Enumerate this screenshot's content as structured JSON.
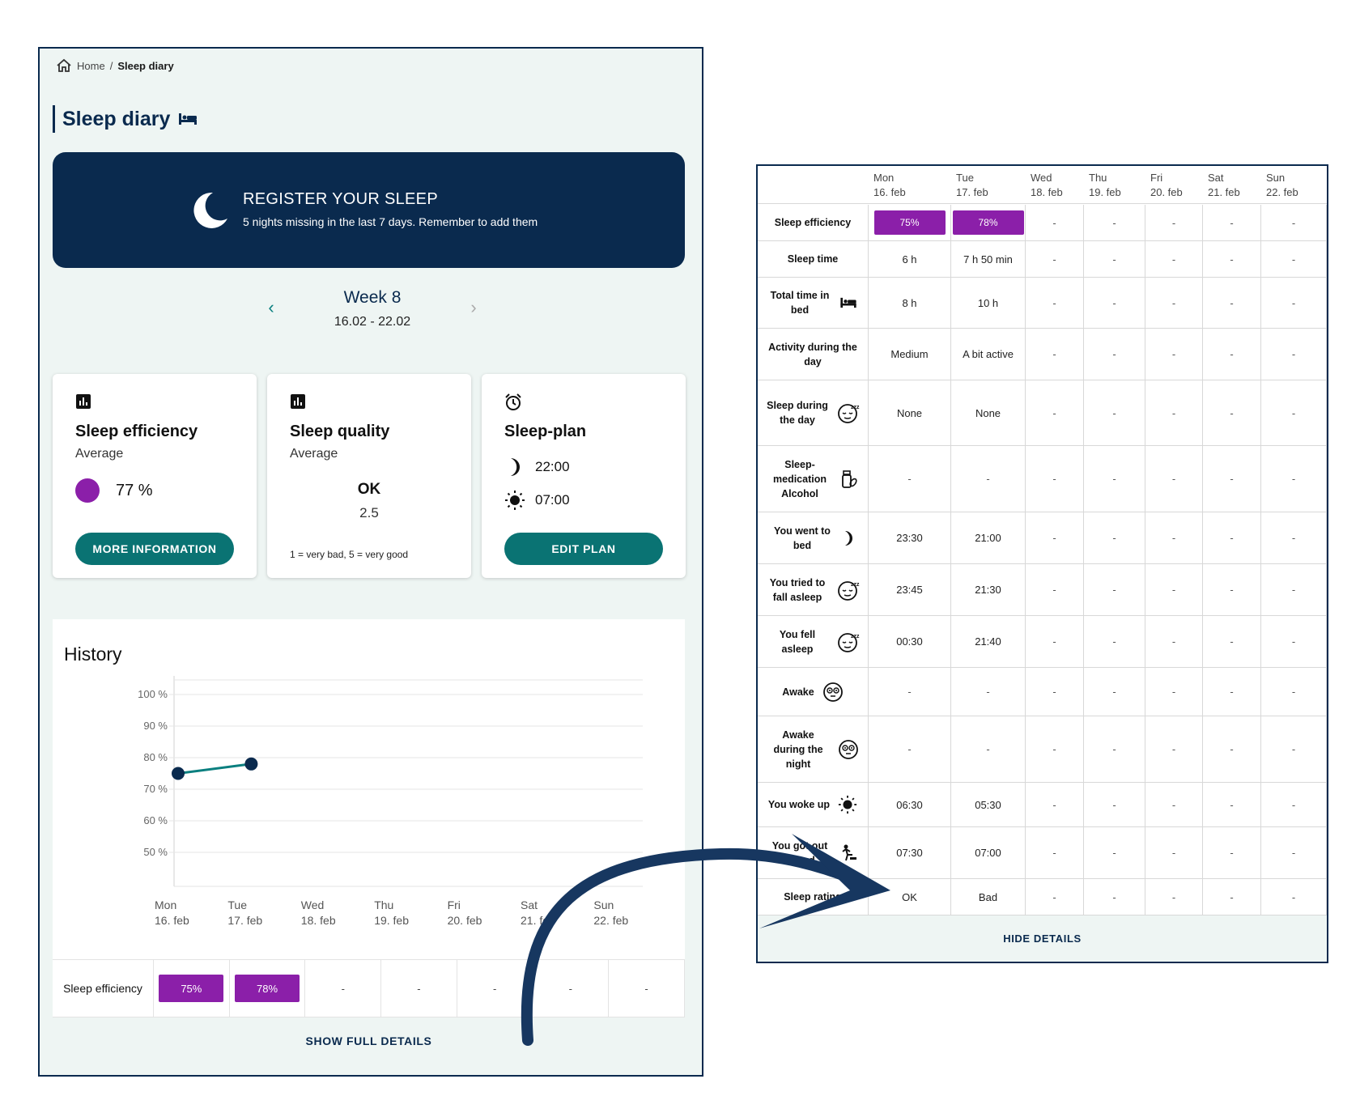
{
  "breadcrumb": {
    "home": "Home",
    "separator": "/",
    "current": "Sleep diary"
  },
  "page_title": "Sleep diary",
  "banner": {
    "title": "REGISTER YOUR SLEEP",
    "subtitle": "5 nights missing in the last 7 days. Remember to add them"
  },
  "week": {
    "label": "Week 8",
    "range": "16.02 - 22.02"
  },
  "cards": {
    "efficiency": {
      "title": "Sleep efficiency",
      "subtitle": "Average",
      "value": "77 %",
      "button": "MORE INFORMATION",
      "dot_color": "#8b1fa9"
    },
    "quality": {
      "title": "Sleep quality",
      "subtitle": "Average",
      "value": "OK",
      "score": "2.5",
      "scale": "1 = very bad, 5 = very good"
    },
    "plan": {
      "title": "Sleep-plan",
      "bedtime": "22:00",
      "wake": "07:00",
      "button": "EDIT PLAN"
    }
  },
  "history": {
    "title": "History",
    "row_label": "Sleep efficiency",
    "row_values": [
      "75%",
      "78%",
      "-",
      "-",
      "-",
      "-",
      "-"
    ],
    "button": "SHOW FULL DETAILS"
  },
  "days": [
    {
      "name": "Mon",
      "date": "16. feb"
    },
    {
      "name": "Tue",
      "date": "17. feb"
    },
    {
      "name": "Wed",
      "date": "18. feb"
    },
    {
      "name": "Thu",
      "date": "19. feb"
    },
    {
      "name": "Fri",
      "date": "20. feb"
    },
    {
      "name": "Sat",
      "date": "21. feb"
    },
    {
      "name": "Sun",
      "date": "22. feb"
    }
  ],
  "chart_data": {
    "type": "line",
    "categories": [
      "Mon 16. feb",
      "Tue 17. feb",
      "Wed 18. feb",
      "Thu 19. feb",
      "Fri 20. feb",
      "Sat 21. feb",
      "Sun 22. feb"
    ],
    "y_ticks": [
      "100 %",
      "90 %",
      "80 %",
      "70 %",
      "60 %",
      "50 %"
    ],
    "ylim": [
      50,
      100
    ],
    "series": [
      {
        "values": [
          75,
          78,
          null,
          null,
          null,
          null,
          null
        ]
      }
    ],
    "grid": true,
    "colors": {
      "line": "#0a7f7f",
      "point": "#0a2a4e"
    }
  },
  "details": {
    "rows": [
      {
        "label": "Sleep efficiency",
        "icon": "",
        "values": [
          "75%",
          "78%",
          "-",
          "-",
          "-",
          "-",
          "-"
        ],
        "badges": true
      },
      {
        "label": "Sleep time",
        "icon": "",
        "values": [
          "6 h",
          "7 h 50 min",
          "-",
          "-",
          "-",
          "-",
          "-"
        ]
      },
      {
        "label": "Total time in bed",
        "icon": "bed-icon",
        "values": [
          "8 h",
          "10 h",
          "-",
          "-",
          "-",
          "-",
          "-"
        ]
      },
      {
        "label": "Activity during the day",
        "icon": "",
        "values": [
          "Medium",
          "A bit active",
          "-",
          "-",
          "-",
          "-",
          "-"
        ]
      },
      {
        "label": "Sleep during the day",
        "icon": "sleepy-face-icon",
        "values": [
          "None",
          "None",
          "-",
          "-",
          "-",
          "-",
          "-"
        ]
      },
      {
        "label": "Sleep-medication Alcohol",
        "icon": "medication-icon",
        "values": [
          "-",
          "-",
          "-",
          "-",
          "-",
          "-",
          "-"
        ]
      },
      {
        "label": "You went to bed",
        "icon": "moon-icon",
        "values": [
          "23:30",
          "21:00",
          "-",
          "-",
          "-",
          "-",
          "-"
        ]
      },
      {
        "label": "You tried to fall asleep",
        "icon": "sleepy-face-icon",
        "values": [
          "23:45",
          "21:30",
          "-",
          "-",
          "-",
          "-",
          "-"
        ]
      },
      {
        "label": "You fell asleep",
        "icon": "sleepy-face-icon",
        "values": [
          "00:30",
          "21:40",
          "-",
          "-",
          "-",
          "-",
          "-"
        ]
      },
      {
        "label": "Awake",
        "icon": "awake-face-icon",
        "values": [
          "-",
          "-",
          "-",
          "-",
          "-",
          "-",
          "-"
        ]
      },
      {
        "label": "Awake during the night",
        "icon": "awake-face-icon",
        "values": [
          "-",
          "-",
          "-",
          "-",
          "-",
          "-",
          "-"
        ]
      },
      {
        "label": "You woke up",
        "icon": "sun-icon",
        "values": [
          "06:30",
          "05:30",
          "-",
          "-",
          "-",
          "-",
          "-"
        ]
      },
      {
        "label": "You got out of bed",
        "icon": "get-up-icon",
        "values": [
          "07:30",
          "07:00",
          "-",
          "-",
          "-",
          "-",
          "-"
        ]
      },
      {
        "label": "Sleep rating",
        "icon": "",
        "values": [
          "OK",
          "Bad",
          "-",
          "-",
          "-",
          "-",
          "-"
        ]
      }
    ],
    "button": "HIDE DETAILS"
  },
  "colors": {
    "navy": "#0a2a4e",
    "teal": "#0a7373",
    "purple": "#8b1fa9",
    "bg": "#eef5f3"
  }
}
